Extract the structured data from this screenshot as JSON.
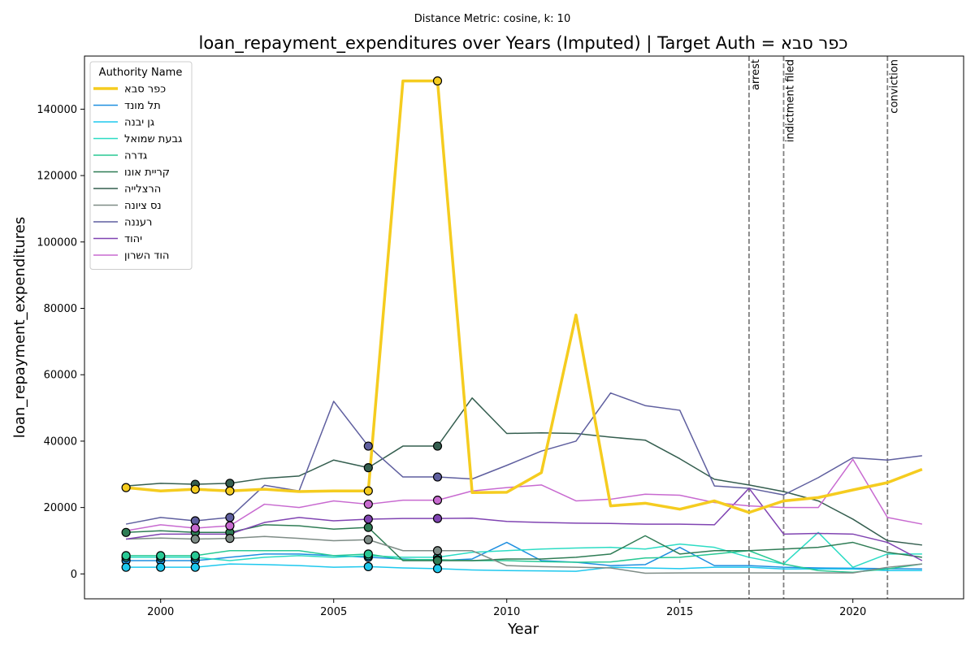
{
  "chart_data": {
    "type": "line",
    "subtitle": "Distance Metric: cosine, k: 10",
    "title": "loan_repayment_expenditures over Years (Imputed) | Target Auth = כפר סבא",
    "xlabel": "Year",
    "ylabel": "loan_repayment_expenditures",
    "xlim": [
      1997.8,
      2023.2
    ],
    "ylim": [
      -7500,
      156000
    ],
    "xticks": [
      2000,
      2005,
      2010,
      2015,
      2020
    ],
    "yticks": [
      0,
      20000,
      40000,
      60000,
      80000,
      100000,
      120000,
      140000
    ],
    "legend_title": "Authority Name",
    "legend_position": "upper-left",
    "grid": false,
    "x": [
      1999,
      2000,
      2001,
      2002,
      2003,
      2004,
      2005,
      2006,
      2007,
      2008,
      2009,
      2010,
      2011,
      2012,
      2013,
      2014,
      2015,
      2016,
      2017,
      2018,
      2019,
      2020,
      2021,
      2022
    ],
    "series": [
      {
        "name": "כפר סבא",
        "color": "#f5cc1f",
        "width": 3.5,
        "target": true,
        "values": [
          26000,
          25000,
          25500,
          25000,
          25500,
          24800,
          25000,
          25000,
          148500,
          148500,
          24500,
          24600,
          30500,
          78000,
          20500,
          21300,
          19500,
          22000,
          18500,
          22000,
          23000,
          25300,
          27500,
          31500
        ],
        "imputed_years": [
          1999,
          2001,
          2002,
          2006,
          2008
        ]
      },
      {
        "name": "תל מונד",
        "color": "#1f8fe0",
        "values": [
          4000,
          4000,
          4000,
          5000,
          6000,
          6000,
          5500,
          5000,
          4500,
          4000,
          4500,
          9500,
          4000,
          3500,
          2500,
          2800,
          8000,
          2500,
          2500,
          2000,
          1800,
          1700,
          1600,
          1500
        ],
        "imputed_years": [
          1999,
          2000,
          2001,
          2006,
          2008
        ]
      },
      {
        "name": "גן יבנה",
        "color": "#1ec8ee",
        "values": [
          2000,
          2000,
          2000,
          3000,
          2800,
          2500,
          2000,
          2200,
          1800,
          1600,
          1200,
          1000,
          900,
          800,
          2000,
          1800,
          1600,
          2000,
          2000,
          1500,
          1500,
          1500,
          1000,
          1000
        ],
        "imputed_years": [
          1999,
          2000,
          2001,
          2006,
          2008
        ]
      },
      {
        "name": "גבעת שמואל",
        "color": "#2cdcc4",
        "values": [
          5000,
          5000,
          5000,
          4000,
          5000,
          5500,
          5000,
          5500,
          5000,
          5000,
          6500,
          7000,
          7500,
          7800,
          8000,
          7500,
          9000,
          8000,
          5000,
          3000,
          12500,
          2000,
          6000,
          6000
        ],
        "imputed_years": [
          1999,
          2000,
          2001,
          2006,
          2008
        ]
      },
      {
        "name": "גדרה",
        "color": "#28c994",
        "values": [
          5500,
          5500,
          5500,
          7000,
          7000,
          7000,
          5500,
          6000,
          4300,
          4300,
          4000,
          4000,
          3700,
          3500,
          3600,
          4800,
          5000,
          6000,
          7000,
          3000,
          1000,
          500,
          1500,
          3000
        ],
        "imputed_years": [
          1999,
          2000,
          2001,
          2006,
          2008
        ]
      },
      {
        "name": "קריית אונו",
        "color": "#2f7c55",
        "values": [
          12500,
          13000,
          12500,
          12500,
          14800,
          14500,
          13500,
          14000,
          4000,
          4000,
          4000,
          4500,
          4500,
          5000,
          6000,
          11500,
          6000,
          7000,
          7000,
          7500,
          8000,
          9500,
          6500,
          5000
        ],
        "imputed_years": [
          1999,
          2001,
          2002,
          2006,
          2008
        ]
      },
      {
        "name": "הרצלייה",
        "color": "#345e4f",
        "values": [
          26500,
          27300,
          27000,
          27300,
          28800,
          29500,
          34300,
          32000,
          38500,
          38500,
          53000,
          42300,
          42500,
          42300,
          41200,
          40300,
          34700,
          28500,
          26800,
          24800,
          22000,
          16500,
          10000,
          8700
        ],
        "imputed_years": [
          2001,
          2002,
          2006,
          2008
        ]
      },
      {
        "name": "נס ציונה",
        "color": "#7e8c86",
        "values": [
          10500,
          10800,
          10500,
          10700,
          11300,
          10700,
          10000,
          10300,
          7000,
          7000,
          7000,
          2500,
          2200,
          2000,
          1800,
          200,
          300,
          300,
          300,
          300,
          300,
          300,
          2000,
          3000
        ],
        "imputed_years": [
          2001,
          2002,
          2006,
          2008
        ]
      },
      {
        "name": "רעננה",
        "color": "#5f5f9f",
        "values": [
          15000,
          17000,
          16000,
          17000,
          26700,
          25000,
          52000,
          38500,
          29200,
          29200,
          28600,
          32700,
          37000,
          40000,
          54500,
          50700,
          49300,
          26500,
          25800,
          23800,
          29000,
          35000,
          34300,
          35600
        ],
        "imputed_years": [
          2001,
          2002,
          2006,
          2008
        ]
      },
      {
        "name": "יהוד",
        "color": "#8044b2",
        "values": [
          10500,
          12000,
          12000,
          12000,
          15500,
          17000,
          16000,
          16500,
          16700,
          16700,
          16800,
          15800,
          15500,
          15300,
          15200,
          15000,
          15000,
          14800,
          25800,
          12000,
          12200,
          12000,
          9500,
          4000
        ],
        "imputed_years": [
          2006,
          2008
        ]
      },
      {
        "name": "הוד השרון",
        "color": "#c86ad0",
        "values": [
          13000,
          14800,
          13800,
          14500,
          21000,
          20000,
          22000,
          21000,
          22200,
          22200,
          25000,
          26000,
          26800,
          22000,
          22500,
          24000,
          23700,
          21500,
          20500,
          20000,
          20000,
          34500,
          17000,
          15000
        ],
        "imputed_years": [
          2001,
          2002,
          2006,
          2008
        ]
      }
    ],
    "vlines": [
      {
        "x": 2017,
        "label": "arrest"
      },
      {
        "x": 2018,
        "label": "indictment filed"
      },
      {
        "x": 2021,
        "label": "conviction"
      }
    ]
  }
}
